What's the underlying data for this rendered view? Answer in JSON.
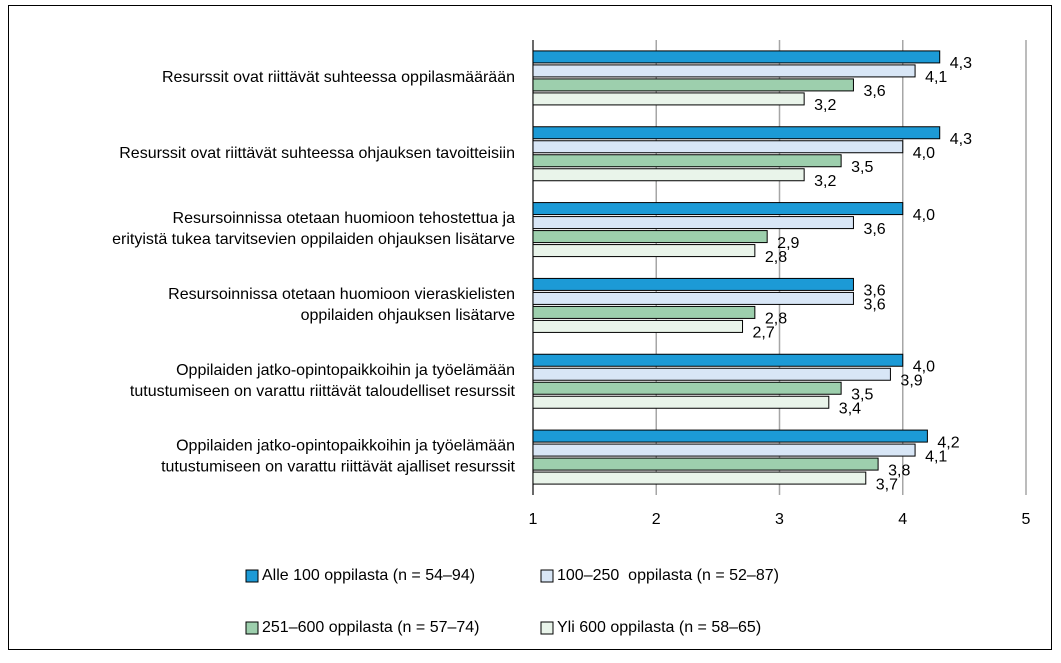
{
  "chart_data": {
    "type": "bar",
    "orientation": "horizontal",
    "categories": [
      [
        "Resurssit ovat riittävät suhteessa oppilasmäärään"
      ],
      [
        "Resurssit ovat riittävät suhteessa ohjauksen tavoitteisiin"
      ],
      [
        "Resursoinnissa otetaan huomioon tehostettua ja",
        "erityistä tukea tarvitsevien oppilaiden ohjauksen lisätarve"
      ],
      [
        "Resursoinnissa otetaan huomioon vieraskielisten",
        "oppilaiden ohjauksen lisätarve"
      ],
      [
        "Oppilaiden jatko-opintopaikkoihin ja työelämään",
        "tutustumiseen on varattu riittävät taloudelliset resurssit"
      ],
      [
        "Oppilaiden jatko-opintopaikkoihin ja työelämään",
        "tutustumiseen on varattu riittävät ajalliset resurssit"
      ]
    ],
    "series": [
      {
        "name": "Alle 100 oppilasta (n = 54–94)",
        "color": "#1c9ad6",
        "values": [
          4.3,
          4.3,
          4.0,
          3.6,
          4.0,
          4.2
        ],
        "value_labels": [
          "4,3",
          "4,3",
          "4,0",
          "3,6",
          "4,0",
          "4,2"
        ]
      },
      {
        "name": "100–250  oppilasta (n = 52–87)",
        "color": "#d8e6f6",
        "values": [
          4.1,
          4.0,
          3.6,
          3.6,
          3.9,
          4.1
        ],
        "value_labels": [
          "4,1",
          "4,0",
          "3,6",
          "3,6",
          "3,9",
          "4,1"
        ]
      },
      {
        "name": "251–600 oppilasta (n = 57–74)",
        "color": "#9dcfad",
        "values": [
          3.6,
          3.5,
          2.9,
          2.8,
          3.5,
          3.8
        ],
        "value_labels": [
          "3,6",
          "3,5",
          "2,9",
          "2,8",
          "3,5",
          "3,8"
        ]
      },
      {
        "name": "Yli 600 oppilasta (n = 58–65)",
        "color": "#e9f4ea",
        "values": [
          3.2,
          3.2,
          2.8,
          2.7,
          3.4,
          3.7
        ],
        "value_labels": [
          "3,2",
          "3,2",
          "2,8",
          "2,7",
          "3,4",
          "3,7"
        ]
      }
    ],
    "xlim": [
      1,
      5
    ],
    "xticks": [
      1,
      2,
      3,
      4,
      5
    ],
    "grid": true
  }
}
